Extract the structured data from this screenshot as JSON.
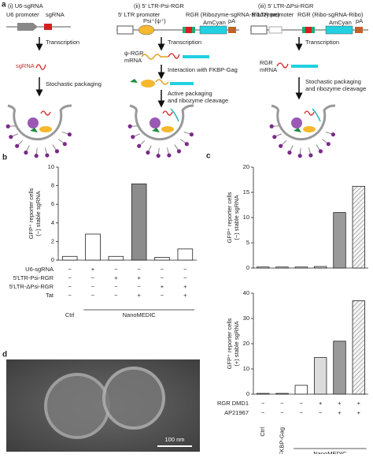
{
  "panel_a": {
    "label": "a",
    "titles": [
      "(i) U6-sgRNA",
      "(ii) 5′ LTR-Psi-RGR",
      "(iii) 5′ LTR-ΔPsi-RGR"
    ],
    "u6_promoter": "U6 promoter",
    "sgrna_top": "sgRNA",
    "ltr_promoter_ii": "5′ LTR promoter",
    "rgr_ii": "RGR (Ribozyme-sgRNA-Ribozyme)",
    "psi": "Psi⁺(ψ⁺)",
    "amcyan_ii": "AmCyan",
    "pa_ii": "pA",
    "ltr_promoter_iii": "5′ LTR promoter",
    "rgr_iii": "RGR (Ribo-sgRNA-Ribo)",
    "amcyan_iii": "AmCyan",
    "pa_iii": "pA",
    "transcription": [
      "Transcription",
      "Transcription",
      "Transcription"
    ],
    "sgrna": "sgRNA",
    "psi_rgr_mrna": [
      "ψ-RGR",
      "mRNA"
    ],
    "rgr_mrna": [
      "RGR",
      "mRNA"
    ],
    "stochastic_packaging": "Stochastic packaging",
    "interaction": "Interaction with FKBP-Gag",
    "active_packaging": [
      "Active packaging",
      "and ribozyme cleavage"
    ],
    "stochastic_cleavage": [
      "Stochastic packaging",
      "and ribozyme cleavage"
    ]
  },
  "panel_labels": {
    "b": "b",
    "c": "c",
    "d": "d"
  },
  "panel_d": {
    "scale_bar": "100 nm"
  },
  "chart_data": [
    {
      "type": "bar",
      "ylabel": [
        "GFP⁺ reporter cells",
        "(−) stable sgRNA"
      ],
      "categories": [
        "Ctrl",
        null,
        null,
        null,
        null,
        null
      ],
      "groups": [
        "NanoMEDIC"
      ],
      "values": [
        0.4,
        2.8,
        0.4,
        8.2,
        0.3,
        1.2
      ],
      "colors": [
        "#ffffff",
        "#ffffff",
        "#ffffff",
        "#8c8c8c",
        "#ffffff",
        "#ffffff"
      ],
      "hatched": [
        false,
        false,
        false,
        false,
        false,
        false
      ],
      "ylim": [
        0,
        10
      ],
      "yticks": [
        0,
        2,
        4,
        6,
        8,
        10
      ],
      "conditions": [
        {
          "name": "U6-sgRNA",
          "marks": [
            "−",
            "+",
            "−",
            "−",
            "−",
            "−"
          ]
        },
        {
          "name": "5′LTR-Psi-RGR",
          "marks": [
            "−",
            "−",
            "+",
            "+",
            "−",
            "−"
          ]
        },
        {
          "name": "5′LTR-ΔPsi-RGR",
          "marks": [
            "−",
            "−",
            "−",
            "−",
            "+",
            "+"
          ]
        },
        {
          "name": "Tat",
          "marks": [
            "−",
            "−",
            "−",
            "+",
            "−",
            "+"
          ]
        }
      ]
    },
    {
      "type": "bar",
      "ylabel": [
        "GFP⁺ reporter cells",
        "(−) stable sgRNA"
      ],
      "values": [
        0.2,
        0.2,
        0.2,
        0.3,
        11,
        16.2
      ],
      "colors": [
        "#ffffff",
        "#ffffff",
        "#ffffff",
        "#dcdcdc",
        "#9a9a9a",
        "#eeeeee"
      ],
      "hatched": [
        false,
        false,
        false,
        false,
        false,
        true
      ],
      "ylim": [
        0,
        20
      ],
      "yticks": [
        0,
        5,
        10,
        15,
        20
      ]
    },
    {
      "type": "bar",
      "ylabel": [
        "GFP⁺ reporter cells",
        "(+) stable sgRNA"
      ],
      "categories": [
        "Ctrl",
        "W/o FKBP-Gag",
        null,
        null,
        null,
        null
      ],
      "groups": [
        "NanoMEDIC"
      ],
      "values": [
        0.3,
        0.3,
        3.5,
        14.5,
        21,
        37
      ],
      "colors": [
        "#ffffff",
        "#ffffff",
        "#ffffff",
        "#dcdcdc",
        "#9a9a9a",
        "#eeeeee"
      ],
      "hatched": [
        false,
        false,
        false,
        false,
        false,
        true
      ],
      "ylim": [
        0,
        40
      ],
      "yticks": [
        0,
        10,
        20,
        30,
        40
      ],
      "conditions": [
        {
          "name": "RGR DMD1",
          "marks": [
            "−",
            "−",
            "−",
            "+",
            "+",
            "+"
          ]
        },
        {
          "name": "AP21967",
          "marks": [
            "−",
            "−",
            "−",
            "−",
            "+",
            "+"
          ]
        }
      ]
    }
  ]
}
